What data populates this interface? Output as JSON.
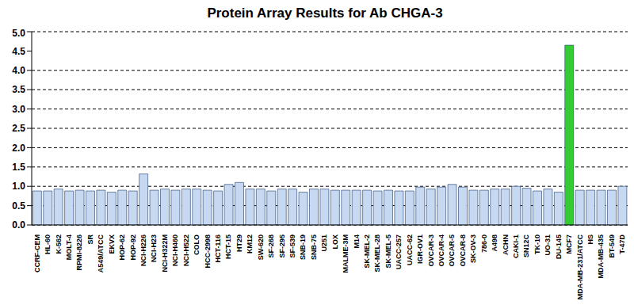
{
  "chart_data": {
    "type": "bar",
    "title": "Protein Array Results for Ab CHGA-3",
    "categories": [
      "CCRF-CEM",
      "HL-60",
      "K-562",
      "MOLT-4",
      "RPMI-8226",
      "SR",
      "A549/ATCC",
      "EKVX",
      "HOP-62",
      "HOP-92",
      "NCI-H226",
      "NCI-H23",
      "NCI-H322M",
      "NCI-H460",
      "NCI-H522",
      "COLO",
      "HCC-2998",
      "HCT-116",
      "HCT-15",
      "HT29",
      "KM12",
      "SW-620",
      "SF-268",
      "SF-295",
      "SF-539",
      "SNB-19",
      "SNB-75",
      "U251",
      "LOX",
      "MALME-3M",
      "M14",
      "SK-MEL-2",
      "SK-MEL-28",
      "SK-MEL-5",
      "UACC-257",
      "UACC-62",
      "IGR-OV1",
      "OVCAR-3",
      "OVCAR-4",
      "OVCAR-5",
      "OVCAR-8",
      "SK-OV-3",
      "786-0",
      "A498",
      "ACHN",
      "CAKI-1",
      "SN12C",
      "TK-10",
      "UO-31",
      "DU-145",
      "MCF7",
      "MDA-MB-231/ATCC",
      "HS",
      "MDA-MB-435",
      "BT-549",
      "T-47D"
    ],
    "values": [
      0.88,
      0.88,
      0.93,
      0.88,
      0.9,
      0.88,
      0.9,
      0.85,
      0.9,
      0.88,
      1.32,
      0.9,
      0.93,
      0.9,
      0.93,
      0.93,
      0.9,
      0.88,
      1.05,
      1.1,
      0.93,
      0.93,
      0.88,
      0.93,
      0.93,
      0.85,
      0.93,
      0.93,
      0.9,
      0.9,
      0.9,
      0.9,
      0.88,
      0.9,
      0.88,
      0.88,
      0.98,
      0.93,
      0.98,
      1.05,
      0.98,
      0.9,
      0.9,
      0.93,
      0.93,
      1.0,
      0.95,
      0.88,
      0.93,
      0.85,
      4.65,
      0.9,
      0.9,
      0.9,
      0.9,
      1.0
    ],
    "colors": [
      "#c6d9f1",
      "#c6d9f1",
      "#c6d9f1",
      "#c6d9f1",
      "#c6d9f1",
      "#c6d9f1",
      "#c6d9f1",
      "#c6d9f1",
      "#c6d9f1",
      "#c6d9f1",
      "#c6d9f1",
      "#c6d9f1",
      "#c6d9f1",
      "#c6d9f1",
      "#c6d9f1",
      "#c6d9f1",
      "#c6d9f1",
      "#c6d9f1",
      "#c6d9f1",
      "#c6d9f1",
      "#c6d9f1",
      "#c6d9f1",
      "#c6d9f1",
      "#c6d9f1",
      "#c6d9f1",
      "#c6d9f1",
      "#c6d9f1",
      "#c6d9f1",
      "#c6d9f1",
      "#c6d9f1",
      "#c6d9f1",
      "#c6d9f1",
      "#c6d9f1",
      "#c6d9f1",
      "#c6d9f1",
      "#c6d9f1",
      "#c6d9f1",
      "#c6d9f1",
      "#c6d9f1",
      "#c6d9f1",
      "#c6d9f1",
      "#c6d9f1",
      "#c6d9f1",
      "#c6d9f1",
      "#c6d9f1",
      "#c6d9f1",
      "#c6d9f1",
      "#c6d9f1",
      "#c6d9f1",
      "#c6d9f1",
      "#33cc33",
      "#c6d9f1",
      "#c6d9f1",
      "#c6d9f1",
      "#c6d9f1",
      "#c6d9f1"
    ],
    "ylim": [
      0,
      5
    ],
    "yticks": [
      {
        "value": 0,
        "label": "0.0"
      },
      {
        "value": 0.5,
        "label": "0.5"
      },
      {
        "value": 1,
        "label": "1.0"
      },
      {
        "value": 1.5,
        "label": "1.5"
      },
      {
        "value": 2,
        "label": "2.0"
      },
      {
        "value": 2.5,
        "label": "2.5"
      },
      {
        "value": 3,
        "label": "3.0"
      },
      {
        "value": 3.5,
        "label": "3.5"
      },
      {
        "value": 4,
        "label": "4.0"
      },
      {
        "value": 4.5,
        "label": "4.5"
      },
      {
        "value": 5,
        "label": "5.0"
      }
    ],
    "grid": true
  }
}
